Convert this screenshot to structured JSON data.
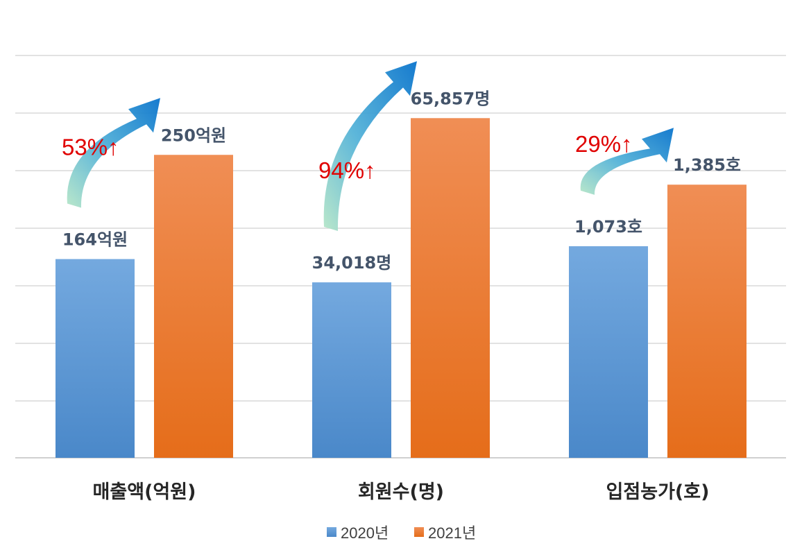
{
  "chart_data": {
    "type": "bar",
    "title": "",
    "xlabel": "",
    "ylabel": "",
    "grid": true,
    "legend_position": "bottom",
    "categories": [
      "매출액(억원)",
      "회원수(명)",
      "입점농가(호)"
    ],
    "series": [
      {
        "name": "2020년",
        "color": "#5b9bd5",
        "values": [
          164,
          34018,
          1073
        ],
        "labels": [
          "164억원",
          "34,018명",
          "1,073호"
        ]
      },
      {
        "name": "2021년",
        "color": "#ed7d31",
        "values": [
          250,
          65857,
          1385
        ],
        "labels": [
          "250억원",
          "65,857명",
          "1,385호"
        ]
      }
    ],
    "growth": [
      {
        "category": "매출액(억원)",
        "value": 53,
        "label": "53%↑"
      },
      {
        "category": "회원수(명)",
        "value": 94,
        "label": "94%↑"
      },
      {
        "category": "입점농가(호)",
        "value": 29,
        "label": "29%↑"
      }
    ],
    "annotation_color": "#e00000",
    "arrow_colors": [
      "#9fdcb8",
      "#0a7ccf"
    ]
  }
}
